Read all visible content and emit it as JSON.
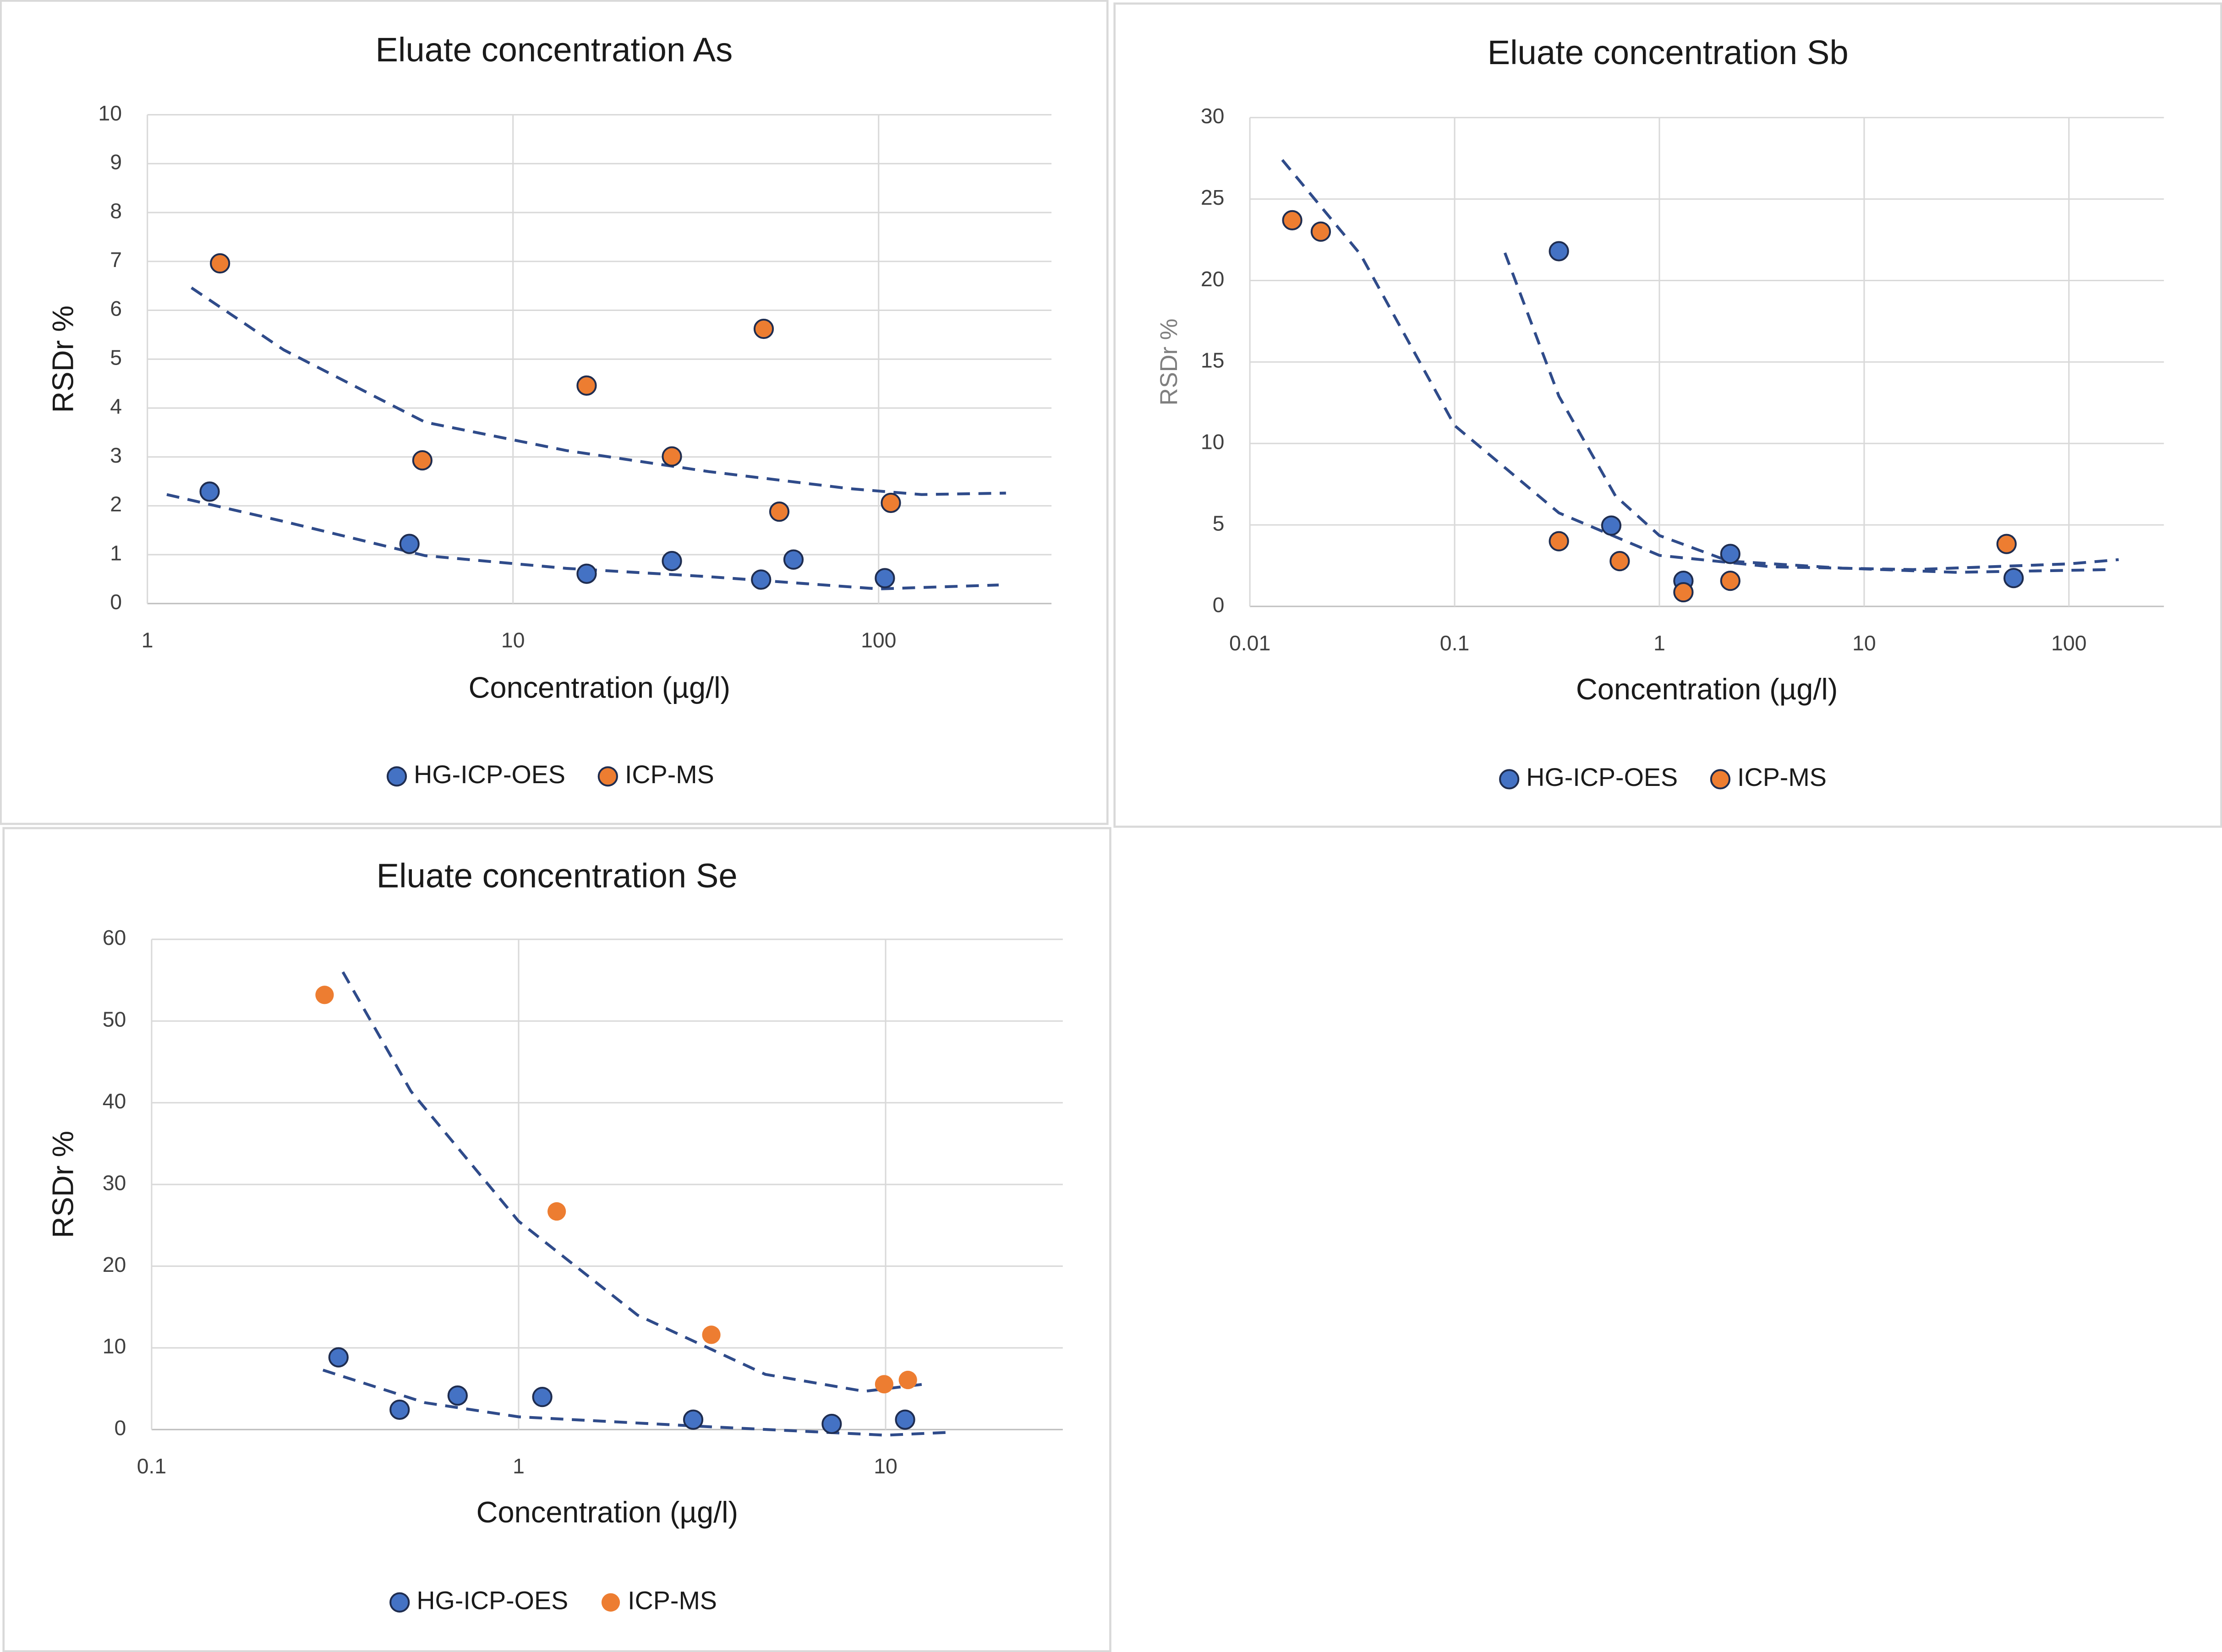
{
  "chart_data": [
    {
      "type": "scatter",
      "title": "Eluate concentration As",
      "xlabel": "Concentration (µg/l)",
      "ylabel": "RSDr %",
      "xscale": "log",
      "xlim": [
        1,
        297
      ],
      "xticks": [
        1,
        10,
        100
      ],
      "ylim": [
        0,
        10
      ],
      "yticks": [
        0,
        1,
        2,
        3,
        4,
        5,
        6,
        7,
        8,
        9,
        10
      ],
      "grid": true,
      "legend": "bottom",
      "series": [
        {
          "name": "HG-ICP-OES",
          "color": "#4472c4",
          "edgecolor": "#1f2d50",
          "x": [
            1.48,
            5.21,
            15.9,
            27.2,
            47.7,
            58.5,
            104
          ],
          "values": [
            2.29,
            1.22,
            0.61,
            0.87,
            0.49,
            0.9,
            0.52
          ],
          "trend": {
            "color": "#2f4b8a",
            "x": [
              1.13,
              2.36,
              5.75,
              14.0,
              34.3,
              100,
              213
            ],
            "values": [
              2.23,
              1.68,
              0.98,
              0.72,
              0.55,
              0.3,
              0.38
            ]
          }
        },
        {
          "name": "ICP-MS",
          "color": "#ed7d31",
          "edgecolor": "#1f2d50",
          "x": [
            1.58,
            5.65,
            15.9,
            27.2,
            48.5,
            53.5,
            108
          ],
          "values": [
            6.96,
            2.93,
            4.46,
            3.01,
            5.62,
            1.88,
            2.06
          ],
          "trend": {
            "color": "#2f4b8a",
            "x": [
              1.32,
              2.36,
              5.75,
              14.0,
              34.3,
              83.6,
              131,
              223
            ],
            "values": [
              6.46,
              5.19,
              3.71,
              3.13,
              2.7,
              2.35,
              2.23,
              2.26
            ]
          }
        }
      ]
    },
    {
      "type": "scatter",
      "title": "Eluate concentration Sb",
      "xlabel": "Concentration (µg/l)",
      "ylabel": "RSDr %",
      "xscale": "log",
      "xlim": [
        0.01,
        291
      ],
      "xticks": [
        0.01,
        0.1,
        1,
        10,
        100
      ],
      "ylim": [
        0,
        30
      ],
      "yticks": [
        0,
        5,
        10,
        15,
        20,
        25,
        30
      ],
      "grid": true,
      "legend": "bottom",
      "series": [
        {
          "name": "HG-ICP-OES",
          "color": "#4472c4",
          "edgecolor": "#1f2d50",
          "x": [
            0.323,
            0.582,
            1.31,
            2.22,
            53.7
          ],
          "values": [
            21.8,
            4.96,
            1.57,
            3.22,
            1.74
          ],
          "trend": {
            "color": "#2f4b8a",
            "x": [
              0.176,
              0.323,
              0.61,
              1,
              2.18,
              7.82,
              27.9,
              161
            ],
            "values": [
              21.7,
              12.9,
              6.78,
              4.35,
              2.78,
              2.35,
              2.09,
              2.26
            ]
          }
        },
        {
          "name": "ICP-MS",
          "color": "#ed7d31",
          "edgecolor": "#1f2d50",
          "x": [
            0.0161,
            0.0222,
            0.323,
            0.64,
            1.31,
            2.22,
            49.6
          ],
          "values": [
            23.7,
            23.0,
            4.0,
            2.78,
            0.87,
            1.57,
            3.83
          ],
          "trend": {
            "color": "#2f4b8a",
            "x": [
              0.0144,
              0.0347,
              0.1,
              0.323,
              1,
              3.52,
              17.3,
              100,
              175
            ],
            "values": [
              27.4,
              21.6,
              11.1,
              5.74,
              3.13,
              2.43,
              2.26,
              2.61,
              2.87
            ]
          }
        }
      ]
    },
    {
      "type": "scatter",
      "title": "Eluate concentration Se",
      "xlabel": "Concentration (µg/l)",
      "ylabel": "RSDr %",
      "xscale": "log",
      "xlim": [
        0.1,
        30.4
      ],
      "xticks": [
        0.1,
        1,
        10
      ],
      "ylim": [
        0,
        60
      ],
      "yticks": [
        0,
        10,
        20,
        30,
        40,
        50,
        60
      ],
      "grid": true,
      "legend": "bottom",
      "series": [
        {
          "name": "HG-ICP-OES",
          "color": "#4472c4",
          "edgecolor": "#1f2d50",
          "x": [
            0.323,
            0.474,
            0.682,
            1.16,
            2.99,
            7.13,
            11.3
          ],
          "values": [
            8.84,
            2.43,
            4.16,
            3.99,
            1.21,
            0.69,
            1.21
          ],
          "trend": {
            "color": "#2f4b8a",
            "x": [
              0.293,
              0.556,
              1,
              3.29,
              10,
              14.7
            ],
            "values": [
              7.28,
              3.29,
              1.56,
              0.35,
              -0.69,
              -0.35
            ]
          }
        },
        {
          "name": "ICP-MS",
          "color": "#ed7d31",
          "x": [
            0.296,
            1.27,
            3.35,
            9.91,
            11.5
          ],
          "values": [
            53.2,
            26.7,
            11.6,
            5.55,
            6.07
          ],
          "trend": {
            "color": "#2f4b8a",
            "x": [
              0.332,
              0.509,
              1,
              2.11,
              4.7,
              8.75,
              12.7
            ],
            "values": [
              56.0,
              41.4,
              25.5,
              14.0,
              6.76,
              4.68,
              5.55
            ]
          }
        }
      ]
    }
  ]
}
